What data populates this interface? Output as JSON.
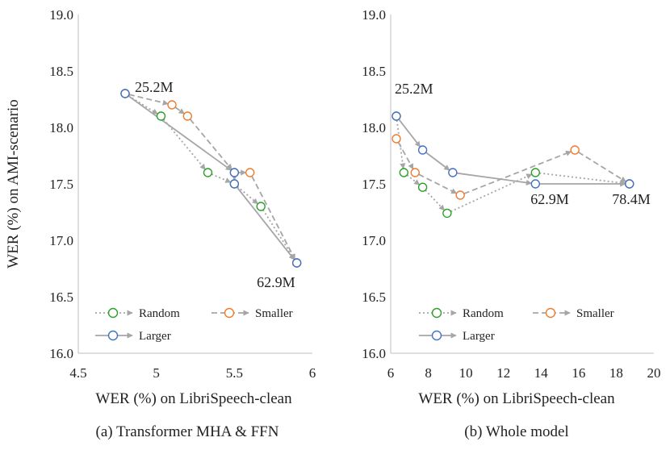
{
  "colors": {
    "Random": "#2ca02c",
    "Smaller": "#ed7d31",
    "Larger": "#4472c4",
    "line": "#a6a6a6"
  },
  "chart_data": [
    {
      "type": "line",
      "caption": "(a) Transformer MHA & FFN",
      "xlabel": "WER (%) on LibriSpeech-clean",
      "ylabel": "WER (%) on AMI-scenario",
      "xlim": [
        4.5,
        6
      ],
      "ylim": [
        16.0,
        19.0
      ],
      "xticks": [
        "4.5",
        "5",
        "5.5",
        "6"
      ],
      "yticks": [
        "16.0",
        "16.5",
        "17.0",
        "17.5",
        "18.0",
        "18.5",
        "19.0"
      ],
      "grid": false,
      "legend": "bottom-left",
      "series": [
        {
          "name": "Random",
          "style": "dotted",
          "x": [
            4.8,
            5.03,
            5.33,
            5.5,
            5.67,
            5.9
          ],
          "y": [
            18.3,
            18.1,
            17.6,
            17.5,
            17.3,
            16.8
          ]
        },
        {
          "name": "Smaller",
          "style": "dashed",
          "x": [
            4.8,
            5.1,
            5.2,
            5.5,
            5.6,
            5.9
          ],
          "y": [
            18.3,
            18.2,
            18.1,
            17.6,
            17.6,
            16.8
          ]
        },
        {
          "name": "Larger",
          "style": "solid",
          "x": [
            4.8,
            5.5,
            5.5,
            5.9
          ],
          "y": [
            18.3,
            17.6,
            17.5,
            16.8
          ]
        }
      ],
      "annotations": [
        {
          "text": "25.2M",
          "x": 4.8,
          "y": 18.3
        },
        {
          "text": "62.9M",
          "x": 5.9,
          "y": 16.8
        }
      ]
    },
    {
      "type": "line",
      "caption": "(b) Whole model",
      "xlabel": "WER (%) on LibriSpeech-clean",
      "ylabel": "",
      "xlim": [
        6,
        20
      ],
      "ylim": [
        16.0,
        19.0
      ],
      "xticks": [
        "6",
        "8",
        "10",
        "12",
        "14",
        "16",
        "18",
        "20"
      ],
      "yticks": [
        "16.0",
        "16.5",
        "17.0",
        "17.5",
        "18.0",
        "18.5",
        "19.0"
      ],
      "grid": false,
      "legend": "bottom-left",
      "series": [
        {
          "name": "Random",
          "style": "dotted",
          "x": [
            6.3,
            6.7,
            7.7,
            9.0,
            13.7,
            18.7
          ],
          "y": [
            18.1,
            17.6,
            17.47,
            17.24,
            17.6,
            17.5
          ]
        },
        {
          "name": "Smaller",
          "style": "dashed",
          "x": [
            6.3,
            7.3,
            9.7,
            15.8,
            18.7
          ],
          "y": [
            17.9,
            17.6,
            17.4,
            17.8,
            17.5
          ]
        },
        {
          "name": "Larger",
          "style": "solid",
          "x": [
            6.3,
            7.7,
            9.3,
            13.7,
            18.7
          ],
          "y": [
            18.1,
            17.8,
            17.6,
            17.5,
            17.5
          ]
        }
      ],
      "annotations": [
        {
          "text": "25.2M",
          "x": 6.3,
          "y": 18.1
        },
        {
          "text": "62.9M",
          "x": 13.7,
          "y": 17.5
        },
        {
          "text": "78.4M",
          "x": 18.7,
          "y": 17.5
        }
      ]
    }
  ]
}
